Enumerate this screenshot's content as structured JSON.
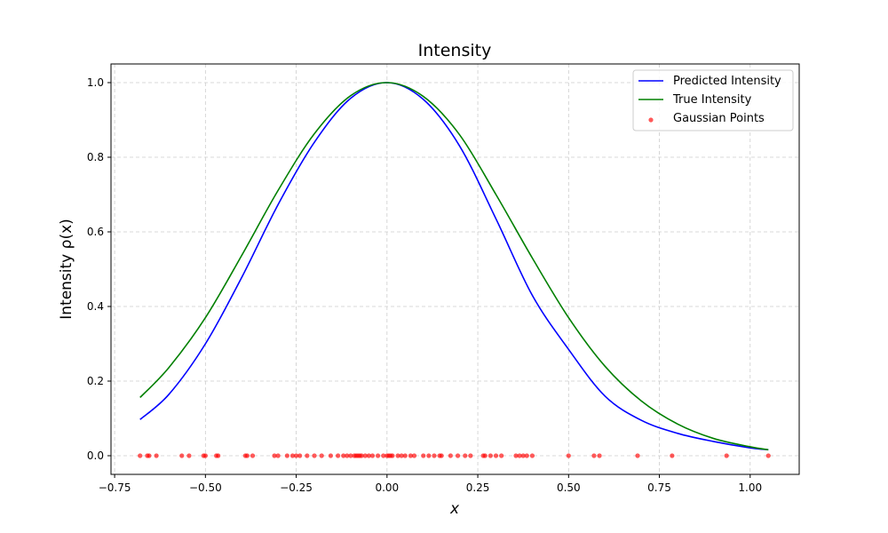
{
  "chart_data": {
    "type": "line",
    "title": "Intensity",
    "xlabel": "x",
    "ylabel": "Intensity ρ(x)",
    "xlim": [
      -0.76,
      1.135
    ],
    "ylim": [
      -0.05,
      1.05
    ],
    "xticks": [
      -0.75,
      -0.5,
      -0.25,
      0.0,
      0.25,
      0.5,
      0.75,
      1.0
    ],
    "xtick_labels": [
      "−0.75",
      "−0.50",
      "−0.25",
      "0.00",
      "0.25",
      "0.50",
      "0.75",
      "1.00"
    ],
    "yticks": [
      0.0,
      0.2,
      0.4,
      0.6,
      0.8,
      1.0
    ],
    "ytick_labels": [
      "0.0",
      "0.2",
      "0.4",
      "0.6",
      "0.8",
      "1.0"
    ],
    "grid": true,
    "legend_position": "top-right",
    "series": [
      {
        "name": "Predicted Intensity",
        "color": "#0000ff",
        "kind": "line",
        "x": [
          -0.68,
          -0.6,
          -0.5,
          -0.4,
          -0.3,
          -0.2,
          -0.1,
          0.0,
          0.1,
          0.2,
          0.3,
          0.4,
          0.5,
          0.6,
          0.7,
          0.8,
          0.9,
          1.0,
          1.05
        ],
        "y": [
          0.097,
          0.165,
          0.3,
          0.478,
          0.673,
          0.84,
          0.958,
          1.0,
          0.955,
          0.83,
          0.635,
          0.43,
          0.285,
          0.16,
          0.095,
          0.06,
          0.038,
          0.021,
          0.016
        ]
      },
      {
        "name": "True Intensity",
        "color": "#008000",
        "kind": "line",
        "x": [
          -0.68,
          -0.6,
          -0.5,
          -0.4,
          -0.3,
          -0.2,
          -0.1,
          0.0,
          0.1,
          0.2,
          0.3,
          0.4,
          0.5,
          0.6,
          0.7,
          0.8,
          0.9,
          1.0,
          1.05
        ],
        "y": [
          0.156,
          0.237,
          0.37,
          0.537,
          0.711,
          0.863,
          0.965,
          1.0,
          0.963,
          0.86,
          0.7,
          0.53,
          0.37,
          0.24,
          0.147,
          0.085,
          0.046,
          0.024,
          0.016
        ]
      },
      {
        "name": "Gaussian Points",
        "color": "#ff0000",
        "kind": "scatter",
        "x": [
          -0.68,
          -0.66,
          -0.655,
          -0.635,
          -0.565,
          -0.545,
          -0.505,
          -0.5,
          -0.47,
          -0.465,
          -0.39,
          -0.385,
          -0.37,
          -0.31,
          -0.3,
          -0.275,
          -0.26,
          -0.25,
          -0.24,
          -0.22,
          -0.2,
          -0.18,
          -0.155,
          -0.135,
          -0.12,
          -0.11,
          -0.1,
          -0.09,
          -0.085,
          -0.08,
          -0.075,
          -0.07,
          -0.06,
          -0.05,
          -0.04,
          -0.025,
          -0.01,
          0.0,
          0.005,
          0.01,
          0.015,
          0.03,
          0.04,
          0.05,
          0.065,
          0.075,
          0.1,
          0.115,
          0.13,
          0.145,
          0.15,
          0.175,
          0.195,
          0.215,
          0.23,
          0.265,
          0.27,
          0.285,
          0.3,
          0.315,
          0.355,
          0.365,
          0.375,
          0.385,
          0.4,
          0.5,
          0.57,
          0.585,
          0.69,
          0.785,
          0.935,
          1.05
        ],
        "y": [
          0,
          0,
          0,
          0,
          0,
          0,
          0,
          0,
          0,
          0,
          0,
          0,
          0,
          0,
          0,
          0,
          0,
          0,
          0,
          0,
          0,
          0,
          0,
          0,
          0,
          0,
          0,
          0,
          0,
          0,
          0,
          0,
          0,
          0,
          0,
          0,
          0,
          0,
          0,
          0,
          0,
          0,
          0,
          0,
          0,
          0,
          0,
          0,
          0,
          0,
          0,
          0,
          0,
          0,
          0,
          0,
          0,
          0,
          0,
          0,
          0,
          0,
          0,
          0,
          0,
          0,
          0,
          0,
          0,
          0,
          0,
          0
        ]
      }
    ]
  }
}
